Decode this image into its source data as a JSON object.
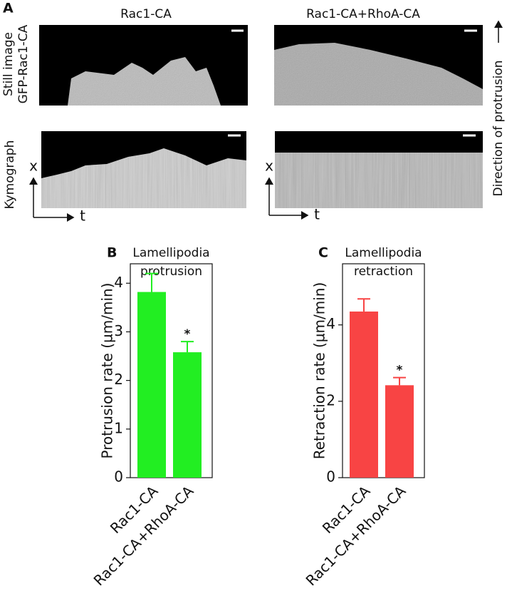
{
  "panel_a": {
    "label": "A",
    "columns": [
      "Rac1-CA",
      "Rac1-CA+RhoA-CA"
    ],
    "still_label": [
      "Still image",
      "GFP-Rac1-CA"
    ],
    "kymograph_label": "Kymograph",
    "axis_x": "x",
    "axis_t": "t",
    "direction": "Direction of protrusion"
  },
  "chart_data": [
    {
      "type": "bar",
      "panel_label": "B",
      "title": [
        "Lamellipodia",
        "protrusion"
      ],
      "y_label": "Protrusion rate (µm/min)",
      "categories": [
        "Rac1-CA",
        "Rac1-CA+RhoA-CA"
      ],
      "values": [
        3.82,
        2.58
      ],
      "errors": [
        0.38,
        0.22
      ],
      "significance": [
        null,
        "*"
      ],
      "color": "#22ee22",
      "ylim": [
        0,
        4.4
      ],
      "yticks": [
        0,
        1,
        2,
        3,
        4
      ]
    },
    {
      "type": "bar",
      "panel_label": "C",
      "title": [
        "Lamellipodia",
        "retraction"
      ],
      "y_label": "Retraction rate (µm/min)",
      "categories": [
        "Rac1-CA",
        "Rac1-CA+RhoA-CA"
      ],
      "values": [
        4.35,
        2.42
      ],
      "errors": [
        0.33,
        0.2
      ],
      "significance": [
        null,
        "*"
      ],
      "color": "#f84444",
      "ylim": [
        0,
        5.6
      ],
      "yticks": [
        0,
        2,
        4
      ]
    }
  ]
}
